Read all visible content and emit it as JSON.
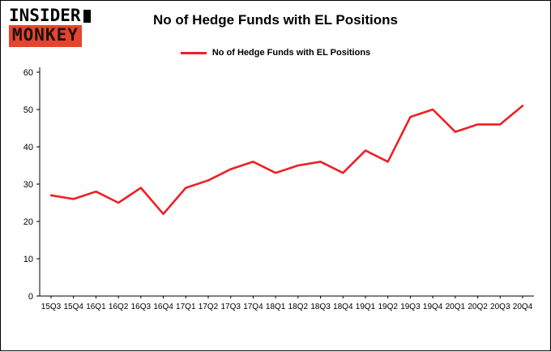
{
  "logo": {
    "line1": "INSIDER",
    "line2": "MONKEY"
  },
  "title": "No of Hedge Funds with EL Positions",
  "legend": {
    "label": "No of Hedge Funds with EL Positions"
  },
  "colors": {
    "line": "#ed2024",
    "logo_red": "#e8432d",
    "axis": "#000000",
    "background": "#ffffff"
  },
  "chart_data": {
    "type": "line",
    "title": "No of Hedge Funds with EL Positions",
    "categories": [
      "15Q3",
      "15Q4",
      "16Q1",
      "16Q2",
      "16Q3",
      "16Q4",
      "17Q1",
      "17Q2",
      "17Q3",
      "17Q4",
      "18Q1",
      "18Q2",
      "18Q3",
      "18Q4",
      "19Q1",
      "19Q2",
      "19Q3",
      "19Q4",
      "20Q1",
      "20Q2",
      "20Q3",
      "20Q4"
    ],
    "series": [
      {
        "name": "No of Hedge Funds with EL Positions",
        "values": [
          27,
          26,
          28,
          25,
          29,
          22,
          29,
          31,
          34,
          36,
          33,
          35,
          36,
          33,
          39,
          36,
          48,
          50,
          44,
          46,
          46,
          51
        ]
      }
    ],
    "xlabel": "",
    "ylabel": "",
    "ylim": [
      0,
      60
    ],
    "yticks": [
      0,
      10,
      20,
      30,
      40,
      50,
      60
    ],
    "grid": false,
    "legend_position": "top"
  }
}
